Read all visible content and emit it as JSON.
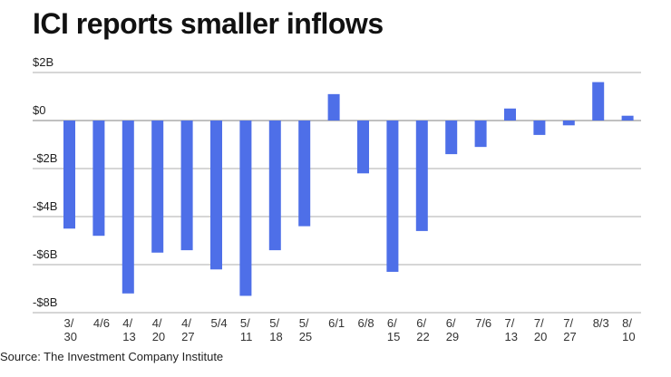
{
  "title": "ICI reports smaller inflows",
  "source": "Source: The Investment Company Institute",
  "chart_data": {
    "type": "bar",
    "title": "ICI reports smaller inflows",
    "xlabel": "",
    "ylabel": "",
    "ylim": [
      -8,
      2
    ],
    "yticks": [
      2,
      0,
      -2,
      -4,
      -6,
      -8
    ],
    "ytick_labels": [
      "$2B",
      "$0",
      "-$2B",
      "-$4B",
      "-$6B",
      "-$8B"
    ],
    "grid": true,
    "bar_color": "#4e6fe8",
    "categories": [
      "3/30",
      "4/6",
      "4/13",
      "4/20",
      "4/27",
      "5/4",
      "5/11",
      "5/18",
      "5/25",
      "6/1",
      "6/8",
      "6/15",
      "6/22",
      "6/29",
      "7/6",
      "7/13",
      "7/20",
      "7/27",
      "8/3",
      "8/10"
    ],
    "category_label_lines": [
      [
        "3/",
        "30"
      ],
      [
        "4/6"
      ],
      [
        "4/",
        "13"
      ],
      [
        "4/",
        "20"
      ],
      [
        "4/",
        "27"
      ],
      [
        "5/4"
      ],
      [
        "5/",
        "11"
      ],
      [
        "5/",
        "18"
      ],
      [
        "5/",
        "25"
      ],
      [
        "6/1"
      ],
      [
        "6/8"
      ],
      [
        "6/",
        "15"
      ],
      [
        "6/",
        "22"
      ],
      [
        "6/",
        "29"
      ],
      [
        "7/6"
      ],
      [
        "7/",
        "13"
      ],
      [
        "7/",
        "20"
      ],
      [
        "7/",
        "27"
      ],
      [
        "8/3"
      ],
      [
        "8/",
        "10"
      ]
    ],
    "values": [
      -4.5,
      -4.8,
      -7.2,
      -5.5,
      -5.4,
      -6.2,
      -7.3,
      -5.4,
      -4.4,
      1.1,
      -2.2,
      -6.3,
      -4.6,
      -1.4,
      -1.1,
      0.5,
      -0.6,
      -0.2,
      1.6,
      0.2
    ],
    "unit": "$B"
  }
}
